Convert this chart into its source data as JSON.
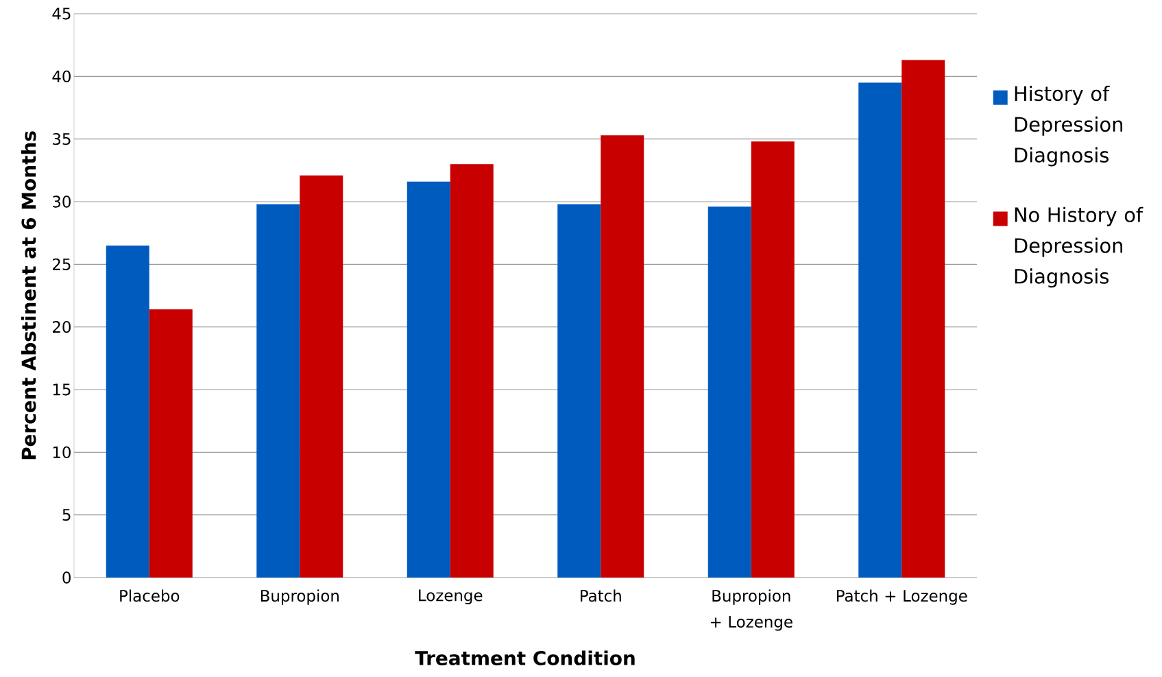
{
  "chart_data": {
    "type": "bar",
    "xlabel": "Treatment Condition",
    "ylabel": "Percent Abstinent at 6 Months",
    "categories": [
      "Placebo",
      "Bupropion",
      "Lozenge",
      "Patch",
      "Bupropion + Lozenge",
      "Patch + Lozenge"
    ],
    "series": [
      {
        "name": "History of Depression Diagnosis",
        "color": "#005bbf",
        "values": [
          26.5,
          29.8,
          31.6,
          29.8,
          29.6,
          39.5
        ]
      },
      {
        "name": "No History of Depression Diagnosis",
        "color": "#c90000",
        "values": [
          21.4,
          32.1,
          33.0,
          35.3,
          34.8,
          41.3
        ]
      }
    ],
    "ylim": [
      0,
      45
    ],
    "yticks": [
      0,
      5,
      10,
      15,
      20,
      25,
      30,
      35,
      40,
      45
    ],
    "grid": "y",
    "legend": "right"
  }
}
